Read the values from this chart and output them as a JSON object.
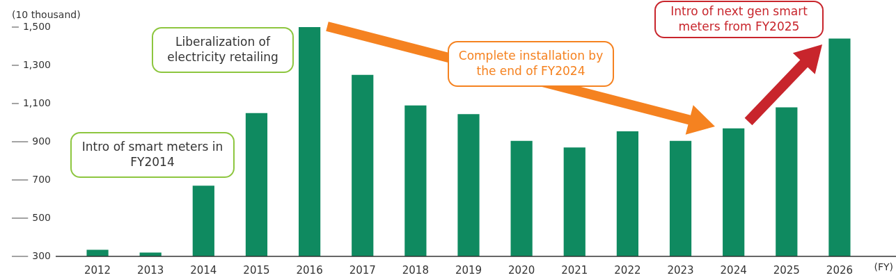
{
  "chart_data": {
    "type": "bar",
    "ylabel": "(10 thousand)",
    "xlabel": "(FY)",
    "categories": [
      "2012",
      "2013",
      "2014",
      "2015",
      "2016",
      "2017",
      "2018",
      "2019",
      "2020",
      "2021",
      "2022",
      "2023",
      "2024",
      "2025",
      "2026"
    ],
    "values": [
      335,
      320,
      670,
      1050,
      1500,
      1250,
      1090,
      1045,
      905,
      870,
      955,
      905,
      970,
      1080,
      1440
    ],
    "color": "#0f8a60",
    "ylim": [
      300,
      1500
    ],
    "yticks": [
      300,
      500,
      700,
      900,
      {
        "value": 1100,
        "label": "1,100"
      },
      {
        "value": 1300,
        "label": "1,300"
      },
      {
        "value": 1500,
        "label": "1,500"
      }
    ],
    "grid": false,
    "legend": false,
    "annotations": [
      "Intro of smart meters in FY2014",
      "Liberalization of electricity retailing",
      "Complete installation by the end of FY2024",
      "Intro of next gen smart meters from FY2025"
    ]
  }
}
